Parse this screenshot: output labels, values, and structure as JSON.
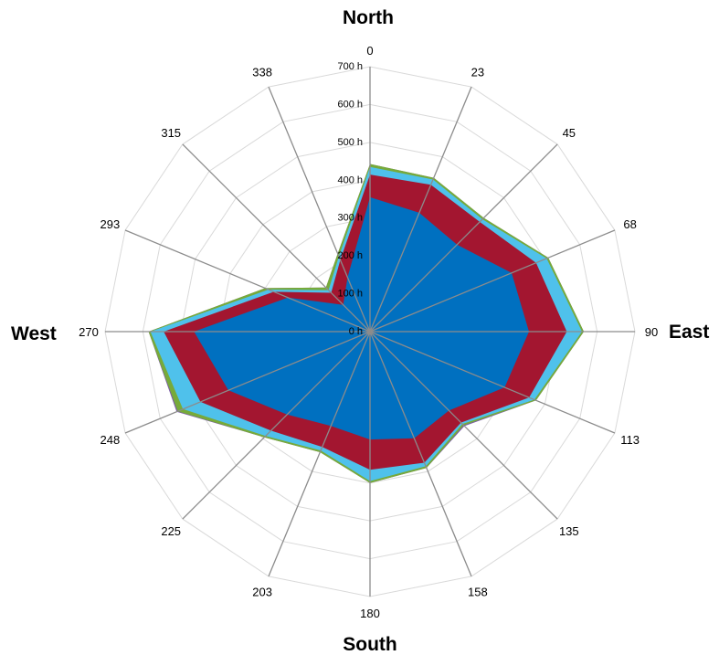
{
  "chart_data": {
    "type": "radar",
    "title": "",
    "compass_labels": {
      "north": "North",
      "east": "East",
      "south": "South",
      "west": "West"
    },
    "categories": [
      "0",
      "23",
      "45",
      "68",
      "90",
      "113",
      "135",
      "158",
      "180",
      "203",
      "225",
      "248",
      "270",
      "293",
      "315",
      "338"
    ],
    "radial_axis": {
      "min": 0,
      "max": 700,
      "step": 100,
      "unit": "h",
      "tick_labels": [
        "0 h",
        "100 h",
        "200 h",
        "300 h",
        "400 h",
        "500 h",
        "600 h",
        "700 h"
      ]
    },
    "grid": true,
    "legend": "none",
    "stacked": true,
    "series": [
      {
        "color": "#0070C0",
        "values": [
          355,
          340,
          325,
          405,
          420,
          385,
          295,
          305,
          285,
          270,
          310,
          405,
          465,
          235,
          100,
          155
        ]
      },
      {
        "color": "#A31630",
        "values": [
          60,
          80,
          85,
          70,
          100,
          70,
          45,
          70,
          80,
          60,
          60,
          80,
          80,
          40,
          45,
          50
        ]
      },
      {
        "color": "#4FC1EB",
        "values": [
          20,
          15,
          10,
          30,
          40,
          15,
          5,
          10,
          30,
          10,
          20,
          50,
          35,
          15,
          10,
          10
        ]
      },
      {
        "color": "#77AA3A",
        "values": [
          8,
          5,
          5,
          5,
          5,
          5,
          5,
          5,
          5,
          5,
          5,
          15,
          5,
          10,
          10,
          8
        ]
      },
      {
        "color": "#7A5BA8",
        "values": [
          0,
          0,
          0,
          0,
          0,
          0,
          3,
          0,
          0,
          0,
          0,
          3,
          0,
          0,
          0,
          0
        ]
      }
    ]
  }
}
